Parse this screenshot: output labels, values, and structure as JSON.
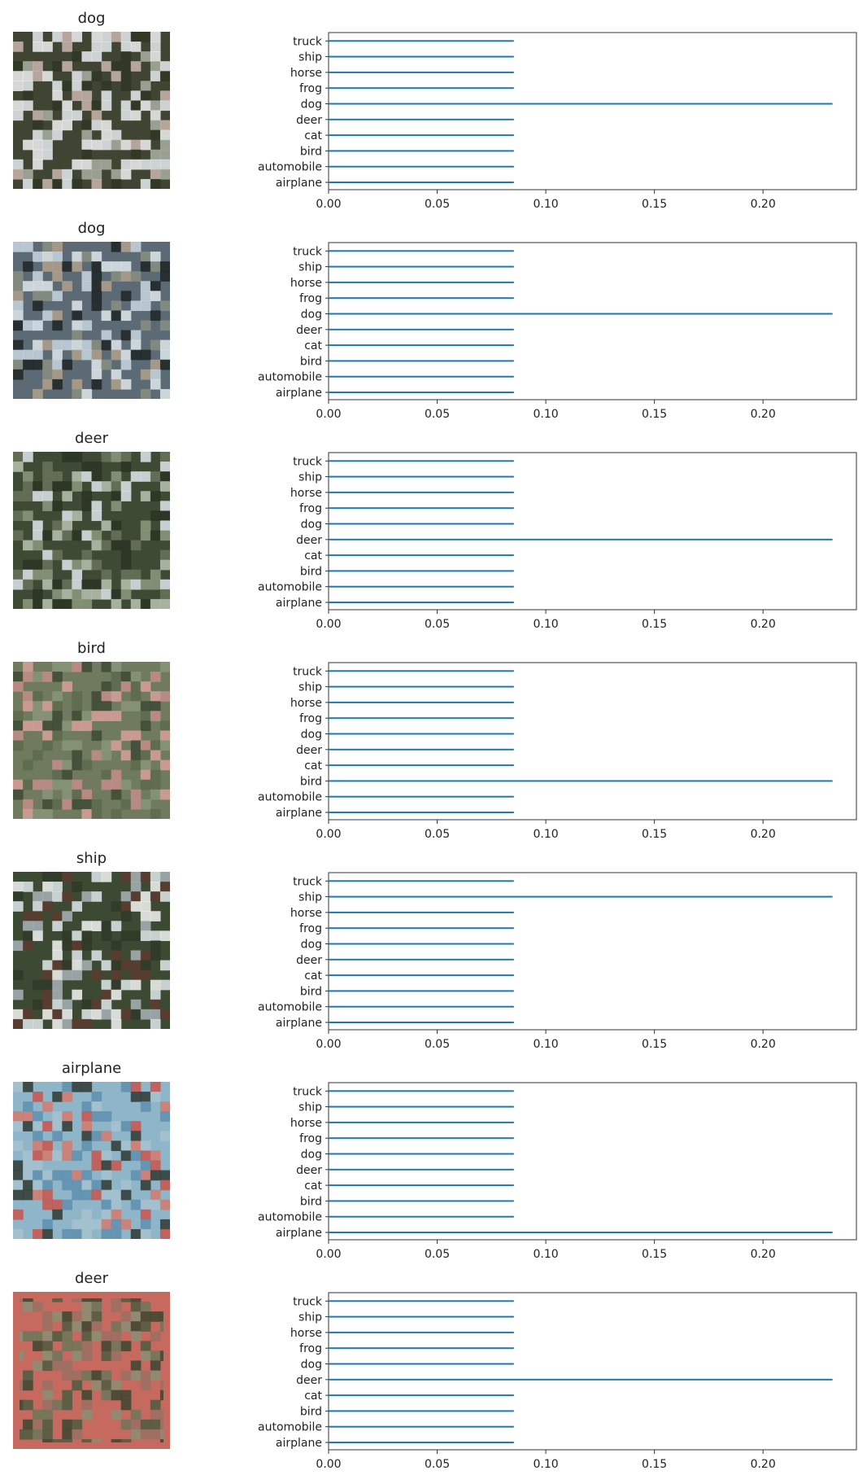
{
  "class_order": [
    "airplane",
    "automobile",
    "bird",
    "cat",
    "deer",
    "dog",
    "frog",
    "horse",
    "ship",
    "truck"
  ],
  "x_ticks": [
    "0.00",
    "0.05",
    "0.10",
    "0.15",
    "0.20"
  ],
  "chart_data": [
    {
      "type": "bar",
      "title": "dog",
      "categories": [
        "airplane",
        "automobile",
        "bird",
        "cat",
        "deer",
        "dog",
        "frog",
        "horse",
        "ship",
        "truck"
      ],
      "values": [
        0.0853,
        0.0853,
        0.0853,
        0.0853,
        0.0853,
        0.232,
        0.0853,
        0.0853,
        0.0853,
        0.0853
      ],
      "xlim": [
        0,
        0.243
      ],
      "xlabel": "",
      "ylabel": "",
      "bar_color": "#1f77b4"
    },
    {
      "type": "bar",
      "title": "dog",
      "categories": [
        "airplane",
        "automobile",
        "bird",
        "cat",
        "deer",
        "dog",
        "frog",
        "horse",
        "ship",
        "truck"
      ],
      "values": [
        0.0853,
        0.0853,
        0.0853,
        0.0853,
        0.0853,
        0.232,
        0.0853,
        0.0853,
        0.0853,
        0.0853
      ],
      "xlim": [
        0,
        0.243
      ],
      "xlabel": "",
      "ylabel": "",
      "bar_color": "#1f77b4"
    },
    {
      "type": "bar",
      "title": "deer",
      "categories": [
        "airplane",
        "automobile",
        "bird",
        "cat",
        "deer",
        "dog",
        "frog",
        "horse",
        "ship",
        "truck"
      ],
      "values": [
        0.0853,
        0.0853,
        0.0853,
        0.0853,
        0.232,
        0.0853,
        0.0853,
        0.0853,
        0.0853,
        0.0853
      ],
      "xlim": [
        0,
        0.243
      ],
      "xlabel": "",
      "ylabel": "",
      "bar_color": "#1f77b4"
    },
    {
      "type": "bar",
      "title": "bird",
      "categories": [
        "airplane",
        "automobile",
        "bird",
        "cat",
        "deer",
        "dog",
        "frog",
        "horse",
        "ship",
        "truck"
      ],
      "values": [
        0.0853,
        0.0853,
        0.232,
        0.0853,
        0.0853,
        0.0853,
        0.0853,
        0.0853,
        0.0853,
        0.0853
      ],
      "xlim": [
        0,
        0.243
      ],
      "xlabel": "",
      "ylabel": "",
      "bar_color": "#1f77b4"
    },
    {
      "type": "bar",
      "title": "ship",
      "categories": [
        "airplane",
        "automobile",
        "bird",
        "cat",
        "deer",
        "dog",
        "frog",
        "horse",
        "ship",
        "truck"
      ],
      "values": [
        0.0853,
        0.0853,
        0.0853,
        0.0853,
        0.0853,
        0.0853,
        0.0853,
        0.0853,
        0.232,
        0.0853
      ],
      "xlim": [
        0,
        0.243
      ],
      "xlabel": "",
      "ylabel": "",
      "bar_color": "#1f77b4"
    },
    {
      "type": "bar",
      "title": "airplane",
      "categories": [
        "airplane",
        "automobile",
        "bird",
        "cat",
        "deer",
        "dog",
        "frog",
        "horse",
        "ship",
        "truck"
      ],
      "values": [
        0.232,
        0.0853,
        0.0853,
        0.0853,
        0.0853,
        0.0853,
        0.0853,
        0.0853,
        0.0853,
        0.0853
      ],
      "xlim": [
        0,
        0.243
      ],
      "xlabel": "",
      "ylabel": "",
      "bar_color": "#1f77b4"
    },
    {
      "type": "bar",
      "title": "deer",
      "categories": [
        "airplane",
        "automobile",
        "bird",
        "cat",
        "deer",
        "dog",
        "frog",
        "horse",
        "ship",
        "truck"
      ],
      "values": [
        0.0853,
        0.0853,
        0.0853,
        0.0853,
        0.232,
        0.0853,
        0.0853,
        0.0853,
        0.0853,
        0.0853
      ],
      "xlim": [
        0,
        0.243
      ],
      "xlabel": "",
      "ylabel": "",
      "bar_color": "#1f77b4"
    }
  ],
  "thumbnails": [
    {
      "name": "dog-white-thumbnail",
      "bg": "#3f4532",
      "colors": [
        "#f2f2f2",
        "#e6ebef",
        "#a9b0a4",
        "#cbb6b0",
        "#2f3624"
      ]
    },
    {
      "name": "dog-black-white-thumbnail",
      "bg": "#5b6a74",
      "colors": [
        "#1f2426",
        "#e1e7ec",
        "#c8d6e0",
        "#8a8e80",
        "#b1a08c"
      ]
    },
    {
      "name": "deer-thumbnail",
      "bg": "#3e4a34",
      "colors": [
        "#2b3325",
        "#8d9a7f",
        "#b9c3b3",
        "#dfe8ec",
        "#6a725c"
      ]
    },
    {
      "name": "bird-thumbnail",
      "bg": "#6f7a5f",
      "colors": [
        "#5d6a4e",
        "#8a9579",
        "#c48e8a",
        "#d8a09a",
        "#3f4a36"
      ]
    },
    {
      "name": "ship-thumbnail",
      "bg": "#3d4a33",
      "colors": [
        "#dfe9ec",
        "#f5f5f5",
        "#5a3b30",
        "#2e3a28",
        "#a9b3b8"
      ]
    },
    {
      "name": "airplane-thumbnail",
      "bg": "#8eb6c8",
      "colors": [
        "#c9534a",
        "#2f3a33",
        "#a7c2cf",
        "#5f8fb0",
        "#d57a6c"
      ]
    },
    {
      "name": "deer-red-frame-thumbnail",
      "bg": "#c66a5f",
      "colors": [
        "#4e5a41",
        "#6b7559",
        "#3b4530",
        "#8a8d73",
        "#9a6f63"
      ]
    }
  ]
}
